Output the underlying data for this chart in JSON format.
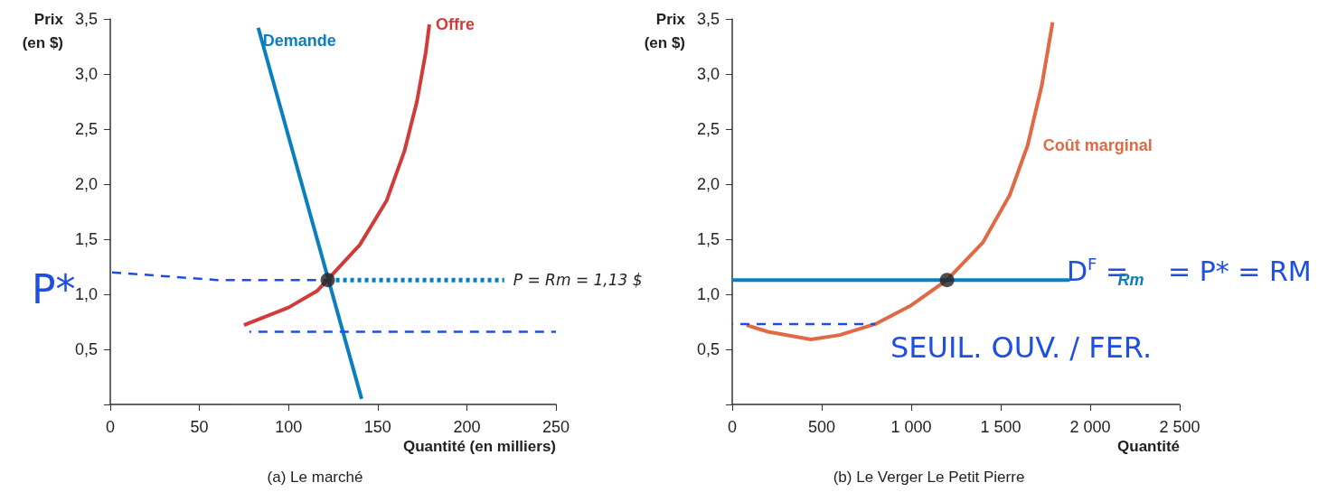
{
  "chart_data": [
    {
      "type": "line",
      "title": "(a) Le marché",
      "xlabel": "Quantité (en milliers)",
      "ylabel": "Prix\n(en $)",
      "xlim": [
        0,
        250
      ],
      "xticks": [
        0,
        50,
        100,
        150,
        200,
        250
      ],
      "ylim": [
        0,
        3.5
      ],
      "yticks": [
        {
          "value": 0,
          "label": null
        },
        {
          "value": 0.5,
          "label": "0,5"
        },
        {
          "value": 1,
          "label": "1,0"
        },
        {
          "value": 1.5,
          "label": "1,5"
        },
        {
          "value": 2,
          "label": "2,0"
        },
        {
          "value": 2.5,
          "label": "2,5"
        },
        {
          "value": 3,
          "label": "3,0"
        },
        {
          "value": 3.5,
          "label": "3,5"
        }
      ],
      "series": [
        {
          "name": "Demande",
          "color": "#0a7fc0",
          "x": [
            83,
            141
          ],
          "values": [
            3.42,
            0.05
          ]
        },
        {
          "name": "Offre",
          "color": "#d13c3a",
          "x": [
            75,
            100,
            116,
            140,
            155,
            165,
            172,
            177,
            179
          ],
          "values": [
            0.72,
            0.88,
            1.03,
            1.45,
            1.85,
            2.3,
            2.75,
            3.2,
            3.45
          ]
        },
        {
          "color": "#0a7fc0",
          "x": [
            122,
            221
          ],
          "values": [
            1.13,
            1.13
          ],
          "line_style": "dotted"
        },
        {
          "color": "#1f4fe0",
          "x": [
            0,
            60,
            122
          ],
          "values": [
            1.2,
            1.13,
            1.13
          ],
          "line_style": "dashed"
        },
        {
          "color": "#1f4fe0",
          "x": [
            78,
            250
          ],
          "values": [
            0.66,
            0.66
          ],
          "line_style": "dashed"
        },
        {
          "type": "scatter",
          "color": "#222222",
          "x": [
            122
          ],
          "values": [
            1.13
          ],
          "marker": "circle"
        }
      ],
      "annotations": [
        "P*",
        {
          "text": "P = Rm = 1,13 $",
          "x": 221,
          "y": 1.13
        }
      ]
    },
    {
      "type": "line",
      "title": "(b) Le Verger Le Petit Pierre",
      "xlabel": "Quantité",
      "ylabel": "Prix\n(en $)",
      "xlim": [
        0,
        2500
      ],
      "xticks": [
        0,
        500,
        {
          "value": 1000,
          "label": "1 000"
        },
        {
          "value": 1500,
          "label": "1 500"
        },
        {
          "value": 2000,
          "label": "2 000"
        },
        {
          "value": 2500,
          "label": "2 500"
        }
      ],
      "ylim": [
        0,
        3.5
      ],
      "yticks": [
        {
          "value": 0,
          "label": null
        },
        {
          "value": 0.5,
          "label": "0,5"
        },
        {
          "value": 1,
          "label": "1,0"
        },
        {
          "value": 1.5,
          "label": "1,5"
        },
        {
          "value": 2,
          "label": "2,0"
        },
        {
          "value": 2.5,
          "label": "2,5"
        },
        {
          "value": 3,
          "label": "3,0"
        },
        {
          "value": 3.5,
          "label": "3,5"
        }
      ],
      "series": [
        {
          "name": "Coût marginal",
          "color": "#e06a45",
          "x": [
            80,
            200,
            440,
            600,
            800,
            1000,
            1200,
            1400,
            1550,
            1650,
            1730,
            1790
          ],
          "values": [
            0.72,
            0.66,
            0.59,
            0.63,
            0.73,
            0.9,
            1.13,
            1.47,
            1.9,
            2.35,
            2.9,
            3.47
          ]
        },
        {
          "name": "Rm",
          "color": "#0a7fc0",
          "x": [
            0,
            1886
          ],
          "values": [
            1.13,
            1.13
          ]
        },
        {
          "color": "#1f4fe0",
          "x": [
            0,
            800
          ],
          "values": [
            0.73,
            0.73
          ],
          "line_style": "dashed"
        },
        {
          "type": "scatter",
          "color": "#222222",
          "x": [
            1200
          ],
          "values": [
            1.13
          ],
          "marker": "circle"
        }
      ],
      "annotations": [
        "D$^{F}$ =",
        "= P* = RM",
        "SEUIL. OUV. / FER."
      ]
    }
  ]
}
